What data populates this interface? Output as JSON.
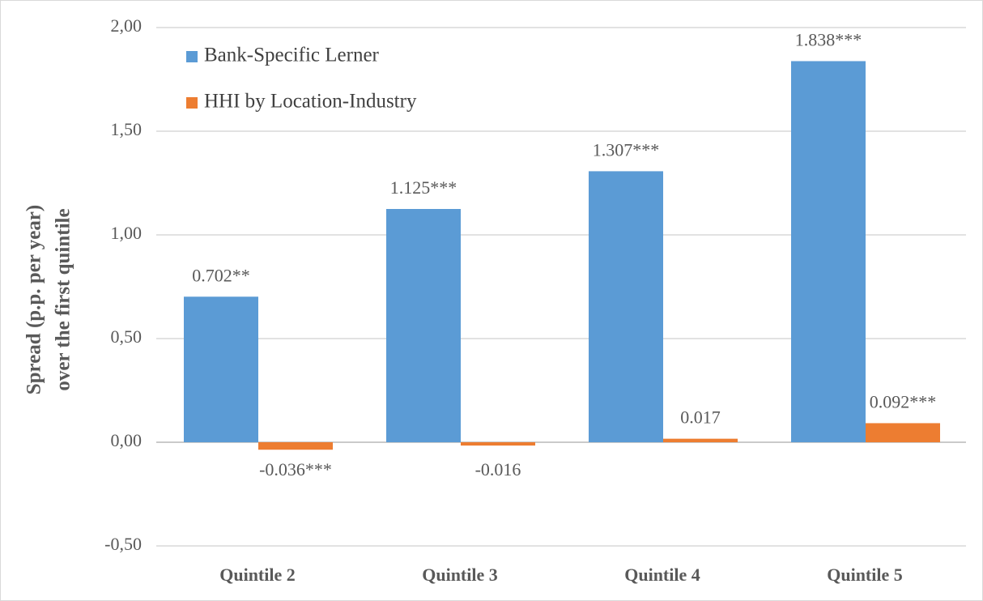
{
  "chart_data": {
    "type": "bar",
    "ylabel": [
      "Spread (p.p. per year)",
      "over the first quintile"
    ],
    "categories": [
      "Quintile 2",
      "Quintile 3",
      "Quintile 4",
      "Quintile 5"
    ],
    "series": [
      {
        "name": "Bank-Specific Lerner",
        "color": "#5b9bd5",
        "values": [
          0.702,
          1.125,
          1.307,
          1.838
        ],
        "value_labels": [
          "0.702**",
          "1.125***",
          "1.307***",
          "1.838***"
        ]
      },
      {
        "name": "HHI by Location-Industry",
        "color": "#ed7d31",
        "values": [
          -0.036,
          -0.016,
          0.017,
          0.092
        ],
        "value_labels": [
          "-0.036***",
          "-0.016",
          "0.017",
          "0.092***"
        ]
      }
    ],
    "ylim": [
      -0.5,
      2.0
    ],
    "yticks": [
      {
        "value": -0.5,
        "label": "-0,50"
      },
      {
        "value": 0,
        "label": "0,00"
      },
      {
        "value": 0.5,
        "label": "0,50"
      },
      {
        "value": 1.0,
        "label": "1,00"
      },
      {
        "value": 1.5,
        "label": "1,50"
      },
      {
        "value": 2.0,
        "label": "2,00"
      }
    ],
    "grid": true,
    "legend": "top-left"
  }
}
